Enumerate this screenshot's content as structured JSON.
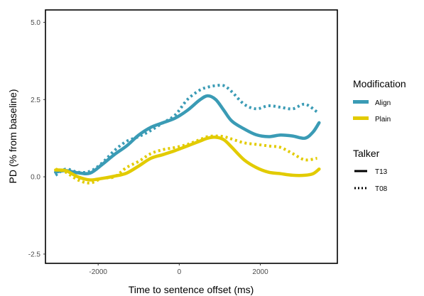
{
  "chart_data": {
    "type": "line",
    "title": "",
    "xlabel": "Time to sentence offset (ms)",
    "ylabel": "PD (% from baseline)",
    "xlim": [
      -3300,
      3900
    ],
    "ylim": [
      -2.8,
      5.4
    ],
    "x_ticks": [
      -2000,
      0,
      2000
    ],
    "x_tick_labels": [
      "-2000",
      "0",
      "2000"
    ],
    "y_ticks": [
      -2.5,
      0.0,
      2.5,
      5.0
    ],
    "y_tick_labels": [
      "-2.5",
      "0.0",
      "2.5",
      "5.0"
    ],
    "grid": false,
    "legend_position": "right",
    "legend": {
      "color_title": "Modification",
      "color_items": [
        {
          "label": "Align",
          "color": "#3A9BB5"
        },
        {
          "label": "Plain",
          "color": "#E2CB00"
        }
      ],
      "linetype_title": "Talker",
      "linetype_items": [
        {
          "label": "T13",
          "style": "solid"
        },
        {
          "label": "T08",
          "style": "dotted"
        }
      ]
    },
    "series": [
      {
        "modification": "Align",
        "talker": "T13",
        "color": "#3A9BB5",
        "style": "solid",
        "x": [
          -3050,
          -2800,
          -2500,
          -2200,
          -1900,
          -1600,
          -1300,
          -1000,
          -700,
          -400,
          -100,
          200,
          500,
          700,
          900,
          1100,
          1300,
          1600,
          1900,
          2200,
          2500,
          2800,
          3100,
          3300,
          3450
        ],
        "y": [
          0.15,
          0.2,
          0.13,
          0.12,
          0.4,
          0.72,
          1.0,
          1.35,
          1.6,
          1.75,
          1.9,
          2.15,
          2.48,
          2.62,
          2.5,
          2.15,
          1.8,
          1.55,
          1.36,
          1.3,
          1.35,
          1.32,
          1.25,
          1.45,
          1.75
        ]
      },
      {
        "modification": "Align",
        "talker": "T08",
        "color": "#3A9BB5",
        "style": "dotted",
        "x": [
          -3050,
          -2800,
          -2500,
          -2200,
          -1900,
          -1600,
          -1300,
          -1000,
          -700,
          -400,
          -100,
          200,
          500,
          700,
          900,
          1100,
          1300,
          1600,
          1900,
          2200,
          2500,
          2800,
          3100,
          3400
        ],
        "y": [
          0.05,
          0.25,
          0.15,
          0.18,
          0.45,
          0.85,
          1.15,
          1.3,
          1.5,
          1.75,
          2.0,
          2.5,
          2.8,
          2.9,
          2.95,
          2.95,
          2.75,
          2.35,
          2.2,
          2.3,
          2.25,
          2.2,
          2.35,
          2.1
        ]
      },
      {
        "modification": "Plain",
        "talker": "T13",
        "color": "#E2CB00",
        "style": "solid",
        "x": [
          -3050,
          -2800,
          -2500,
          -2200,
          -1900,
          -1600,
          -1300,
          -1000,
          -700,
          -400,
          -100,
          200,
          500,
          700,
          900,
          1100,
          1300,
          1600,
          1900,
          2200,
          2500,
          2800,
          3100,
          3300,
          3450
        ],
        "y": [
          0.22,
          0.2,
          0.0,
          -0.1,
          -0.05,
          0.02,
          0.12,
          0.35,
          0.6,
          0.72,
          0.85,
          1.0,
          1.15,
          1.25,
          1.28,
          1.2,
          0.95,
          0.55,
          0.3,
          0.15,
          0.1,
          0.05,
          0.05,
          0.1,
          0.25
        ]
      },
      {
        "modification": "Plain",
        "talker": "T08",
        "color": "#E2CB00",
        "style": "dotted",
        "x": [
          -3050,
          -2800,
          -2500,
          -2200,
          -1900,
          -1600,
          -1300,
          -1000,
          -700,
          -400,
          -100,
          200,
          500,
          700,
          900,
          1100,
          1300,
          1600,
          1900,
          2200,
          2500,
          2800,
          3100,
          3400
        ],
        "y": [
          0.25,
          0.15,
          -0.1,
          -0.2,
          -0.05,
          0.0,
          0.3,
          0.5,
          0.75,
          0.88,
          0.95,
          1.05,
          1.2,
          1.3,
          1.32,
          1.3,
          1.22,
          1.1,
          1.05,
          1.0,
          0.95,
          0.75,
          0.55,
          0.6
        ]
      }
    ]
  }
}
